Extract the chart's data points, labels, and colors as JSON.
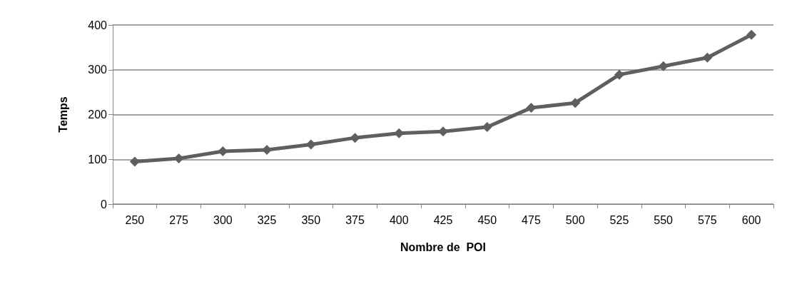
{
  "chart_data": {
    "type": "line",
    "xlabel": "Nombre de  POI",
    "ylabel": "Temps",
    "categories": [
      "250",
      "275",
      "300",
      "325",
      "350",
      "375",
      "400",
      "425",
      "450",
      "475",
      "500",
      "525",
      "550",
      "575",
      "600"
    ],
    "series": [
      {
        "color": "#5f5f5f",
        "values": [
          95,
          102,
          118,
          121,
          133,
          148,
          158,
          162,
          172,
          215,
          226,
          289,
          308,
          327,
          378
        ]
      }
    ],
    "ylim": [
      0,
      400
    ],
    "yticks": [
      0,
      100,
      200,
      300,
      400
    ],
    "grid": "y",
    "marker": "diamond",
    "line_style": "solid"
  }
}
